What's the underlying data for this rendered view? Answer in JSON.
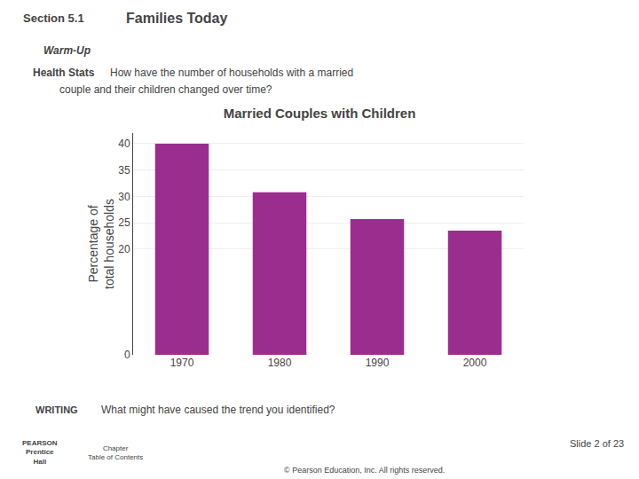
{
  "chart_data": {
    "type": "bar",
    "title": "Married Couples with Children",
    "ylabel": "Percentage of\ntotal households",
    "categories": [
      "1970",
      "1980",
      "1990",
      "2000"
    ],
    "values": [
      40,
      30.8,
      25.7,
      23.5
    ],
    "color": "#9B2D8E",
    "ylim": [
      0,
      42
    ],
    "yticks": [
      0,
      20,
      25,
      30,
      35,
      40
    ],
    "grid": true,
    "annotations": [
      "Section 5.1",
      "Families Today",
      "Warm-Up",
      "Health Stats",
      "How have the number of households with a married",
      "couple and their children changed over time?",
      "WRITING",
      "What might have caused the trend you identified?",
      "PEARSON\nPrentice\nHall",
      "Chapter\nTable of Contents",
      "Slide 2 of 23",
      "© Pearson Education, Inc. All rights reserved."
    ]
  }
}
